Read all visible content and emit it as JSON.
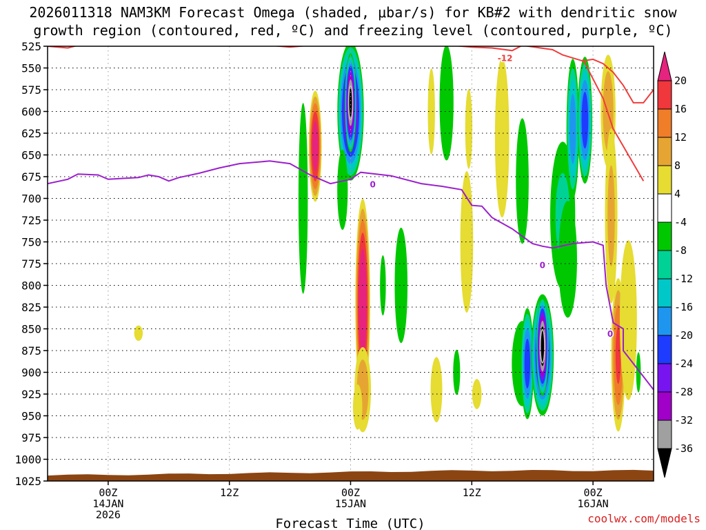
{
  "title": {
    "line1": "2026011318 NAM3KM Forecast Omega (shaded, μbar/s) for KB#2 with dendritic snow",
    "line2": "growth region (contoured, red, ºC) and freezing level (contoured, purple, ºC)"
  },
  "credit": "coolwx.com/models",
  "colors": {
    "frame": "#000000",
    "grid": "#000000",
    "terrain": "#8b4513",
    "dgz_contour": "#f03c3c",
    "freezing_contour": "#9b1fcd"
  },
  "chart_data": {
    "type": "heatmap",
    "title": "Forecast Omega (shaded, μbar/s) for KB#2",
    "xlabel": "Forecast Time (UTC)",
    "ylabel": "Pressure (hPa)",
    "x_hours_range": [
      -6,
      54
    ],
    "x_ticks": [
      {
        "hour": 0,
        "lines": [
          "00Z",
          "14JAN",
          "2026"
        ]
      },
      {
        "hour": 12,
        "lines": [
          "12Z"
        ]
      },
      {
        "hour": 24,
        "lines": [
          "00Z",
          "15JAN"
        ]
      },
      {
        "hour": 36,
        "lines": [
          "12Z"
        ]
      },
      {
        "hour": 48,
        "lines": [
          "00Z",
          "16JAN"
        ]
      }
    ],
    "y_range": [
      525,
      1025
    ],
    "y_ticks": [
      "525",
      "550",
      "575",
      "600",
      "625",
      "650",
      "675",
      "700",
      "725",
      "750",
      "775",
      "800",
      "825",
      "850",
      "875",
      "900",
      "925",
      "950",
      "975",
      "1000",
      "1025"
    ],
    "colorbar": {
      "labels": [
        "20",
        "16",
        "12",
        "8",
        "4",
        "-4",
        "-8",
        "-12",
        "-16",
        "-20",
        "-24",
        "-28",
        "-32",
        "-36"
      ],
      "levels": [
        20,
        16,
        12,
        8,
        4,
        -4,
        -8,
        -12,
        -16,
        -20,
        -24,
        -28,
        -32,
        -36
      ],
      "bands": [
        {
          "range": "> 20",
          "color": "#e6237f"
        },
        {
          "range": "16 to 20",
          "color": "#f0373c"
        },
        {
          "range": "12 to 16",
          "color": "#f07d28"
        },
        {
          "range": "8 to 12",
          "color": "#e6a532"
        },
        {
          "range": "4 to 8",
          "color": "#e6dc32"
        },
        {
          "range": "-4 to 4",
          "color": "#ffffff"
        },
        {
          "range": "-8 to -4",
          "color": "#00c800"
        },
        {
          "range": "-12 to -8",
          "color": "#00d296"
        },
        {
          "range": "-16 to -12",
          "color": "#00c8c8"
        },
        {
          "range": "-20 to -16",
          "color": "#1e96f0"
        },
        {
          "range": "-24 to -20",
          "color": "#1e3cff"
        },
        {
          "range": "-28 to -24",
          "color": "#7814f0"
        },
        {
          "range": "-32 to -28",
          "color": "#a000c8"
        },
        {
          "range": "-36 to -32",
          "color": "#a0a0a0"
        },
        {
          "range": "< -36",
          "color": "#000000"
        }
      ]
    },
    "cells": [
      {
        "h": 3,
        "p": 855,
        "w": 0.6,
        "d": 25,
        "v": 8
      },
      {
        "h": 20.5,
        "p": 660,
        "w": 0.7,
        "d": 70,
        "v": 10
      },
      {
        "h": 20.5,
        "p": 640,
        "w": 0.7,
        "d": 140,
        "v": 24
      },
      {
        "h": 19.3,
        "p": 700,
        "w": 0.8,
        "d": 380,
        "v": -6
      },
      {
        "h": 24,
        "p": 600,
        "w": 1.4,
        "d": 170,
        "v": -32
      },
      {
        "h": 24,
        "p": 590,
        "w": 0.6,
        "d": 120,
        "v": -40
      },
      {
        "h": 25.2,
        "p": 820,
        "w": 0.8,
        "d": 260,
        "v": 26
      },
      {
        "h": 25.2,
        "p": 920,
        "w": 1.0,
        "d": 120,
        "v": 12
      },
      {
        "h": 23.2,
        "p": 690,
        "w": 0.9,
        "d": 160,
        "v": -6
      },
      {
        "h": 27.2,
        "p": 800,
        "w": 0.5,
        "d": 120,
        "v": -6
      },
      {
        "h": 24.7,
        "p": 940,
        "w": 0.8,
        "d": 90,
        "v": 6
      },
      {
        "h": 29,
        "p": 800,
        "w": 1.1,
        "d": 230,
        "v": -6
      },
      {
        "h": 32,
        "p": 600,
        "w": 0.5,
        "d": 140,
        "v": 8
      },
      {
        "h": 33.5,
        "p": 590,
        "w": 1.2,
        "d": 230,
        "v": -6
      },
      {
        "h": 35.5,
        "p": 750,
        "w": 0.9,
        "d": 230,
        "v": 8
      },
      {
        "h": 35.7,
        "p": 620,
        "w": 0.5,
        "d": 130,
        "v": 8
      },
      {
        "h": 32.5,
        "p": 920,
        "w": 1.0,
        "d": 130,
        "v": 6
      },
      {
        "h": 34.5,
        "p": 900,
        "w": 0.6,
        "d": 90,
        "v": -6
      },
      {
        "h": 36.5,
        "p": 925,
        "w": 0.8,
        "d": 60,
        "v": 6
      },
      {
        "h": 39,
        "p": 630,
        "w": 1.0,
        "d": 260,
        "v": 8
      },
      {
        "h": 41,
        "p": 680,
        "w": 1.1,
        "d": 250,
        "v": -6
      },
      {
        "h": 41,
        "p": 890,
        "w": 1.8,
        "d": 170,
        "v": -6
      },
      {
        "h": 41.5,
        "p": 890,
        "w": 0.7,
        "d": 140,
        "v": -24
      },
      {
        "h": 43,
        "p": 880,
        "w": 1.2,
        "d": 150,
        "v": -30
      },
      {
        "h": 43,
        "p": 870,
        "w": 0.65,
        "d": 120,
        "v": -42
      },
      {
        "h": 45,
        "p": 720,
        "w": 1.6,
        "d": 220,
        "v": -10
      },
      {
        "h": 46,
        "p": 620,
        "w": 0.7,
        "d": 180,
        "v": -20
      },
      {
        "h": 47.2,
        "p": 610,
        "w": 0.8,
        "d": 160,
        "v": -24
      },
      {
        "h": 45.5,
        "p": 770,
        "w": 1.3,
        "d": 190,
        "v": -8
      },
      {
        "h": 49.5,
        "p": 600,
        "w": 0.9,
        "d": 160,
        "v": 12
      },
      {
        "h": 49.8,
        "p": 720,
        "w": 0.8,
        "d": 260,
        "v": 10
      },
      {
        "h": 50.5,
        "p": 880,
        "w": 0.8,
        "d": 200,
        "v": 18
      },
      {
        "h": 51.5,
        "p": 840,
        "w": 1.2,
        "d": 260,
        "v": 8
      },
      {
        "h": 52.5,
        "p": 900,
        "w": 0.4,
        "d": 80,
        "v": -6
      }
    ],
    "dgz_contour": {
      "label": "-12",
      "points": [
        [
          -6,
          525
        ],
        [
          -4,
          527
        ],
        [
          -3,
          524
        ],
        [
          1,
          521
        ],
        [
          5,
          521
        ],
        [
          10,
          519
        ],
        [
          12,
          522
        ],
        [
          15,
          523
        ],
        [
          18,
          526
        ],
        [
          20,
          524
        ],
        [
          24,
          523
        ],
        [
          25,
          520
        ],
        [
          30,
          521
        ],
        [
          31,
          524
        ],
        [
          33,
          523
        ],
        [
          36,
          526
        ],
        [
          38,
          527
        ],
        [
          40,
          530
        ],
        [
          41,
          524
        ],
        [
          44,
          529
        ],
        [
          45,
          535
        ],
        [
          47,
          542
        ],
        [
          48,
          540
        ],
        [
          49,
          545
        ],
        [
          50,
          555
        ],
        [
          51,
          570
        ],
        [
          52,
          590
        ],
        [
          53,
          590
        ],
        [
          54,
          575
        ]
      ]
    },
    "dgz_contour_2": [
      [
        47,
        540
      ],
      [
        49,
        585
      ],
      [
        50,
        620
      ],
      [
        51,
        640
      ],
      [
        52,
        660
      ],
      [
        53,
        680
      ]
    ],
    "freezing_contour": {
      "label": "0",
      "points": [
        [
          -6,
          683
        ],
        [
          -4,
          678
        ],
        [
          -3,
          672
        ],
        [
          -1,
          673
        ],
        [
          0,
          678
        ],
        [
          3,
          676
        ],
        [
          4,
          673
        ],
        [
          5,
          675
        ],
        [
          6,
          680
        ],
        [
          7,
          676
        ],
        [
          9,
          671
        ],
        [
          11,
          665
        ],
        [
          13,
          660
        ],
        [
          16,
          657
        ],
        [
          18,
          660
        ],
        [
          20,
          673
        ],
        [
          22,
          683
        ],
        [
          24,
          678
        ],
        [
          25,
          670
        ],
        [
          28,
          674
        ],
        [
          31,
          683
        ],
        [
          33,
          686
        ],
        [
          35,
          690
        ],
        [
          36,
          708
        ],
        [
          37,
          709
        ],
        [
          38,
          722
        ],
        [
          40,
          735
        ],
        [
          42,
          752
        ],
        [
          43,
          755
        ],
        [
          44,
          757
        ],
        [
          46,
          752
        ],
        [
          48,
          750
        ],
        [
          49,
          754
        ],
        [
          49.3,
          800
        ],
        [
          50,
          843
        ],
        [
          51,
          850
        ],
        [
          51,
          875
        ],
        [
          53,
          905
        ],
        [
          54,
          920
        ]
      ]
    }
  }
}
